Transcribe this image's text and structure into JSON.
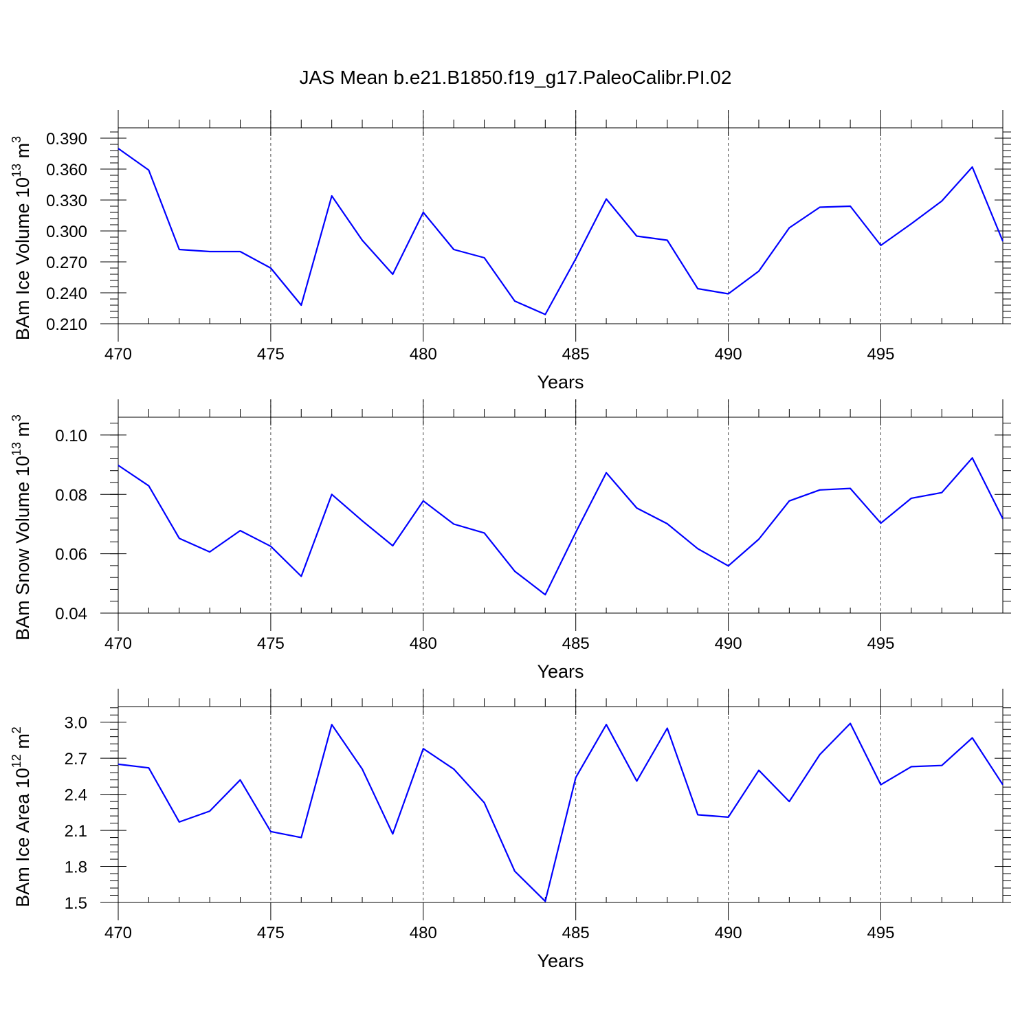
{
  "title": "JAS Mean b.e21.B1850.f19_g17.PaleoCalibr.PI.02",
  "chart_data": [
    {
      "type": "line",
      "xlabel": "Years",
      "ylabel_main": "BAm Ice Volume 10",
      "ylabel_exp": "13",
      "ylabel_unit": "m",
      "ylabel_unit_exp": "3",
      "xlim": [
        470,
        499
      ],
      "ylim": [
        0.21,
        0.4
      ],
      "xticks": [
        "470",
        "475",
        "480",
        "485",
        "490",
        "495"
      ],
      "yticks": [
        "0.210",
        "0.240",
        "0.270",
        "0.300",
        "0.330",
        "0.360",
        "0.390"
      ],
      "x": [
        470,
        471,
        472,
        473,
        474,
        475,
        476,
        477,
        478,
        479,
        480,
        481,
        482,
        483,
        484,
        485,
        486,
        487,
        488,
        489,
        490,
        491,
        492,
        493,
        494,
        495,
        496,
        497,
        498,
        499
      ],
      "series": [
        {
          "name": "BAm Ice Volume",
          "color": "#0000ff",
          "values": [
            0.38,
            0.359,
            0.282,
            0.28,
            0.28,
            0.264,
            0.228,
            0.334,
            0.291,
            0.258,
            0.318,
            0.282,
            0.274,
            0.232,
            0.219,
            0.273,
            0.331,
            0.295,
            0.291,
            0.244,
            0.239,
            0.261,
            0.303,
            0.323,
            0.324,
            0.286,
            0.307,
            0.329,
            0.362,
            0.29
          ]
        }
      ]
    },
    {
      "type": "line",
      "xlabel": "Years",
      "ylabel_main": "BAm Snow Volume 10",
      "ylabel_exp": "13",
      "ylabel_unit": "m",
      "ylabel_unit_exp": "3",
      "xlim": [
        470,
        499
      ],
      "ylim": [
        0.04,
        0.106
      ],
      "xticks": [
        "470",
        "475",
        "480",
        "485",
        "490",
        "495"
      ],
      "yticks": [
        "0.04",
        "0.06",
        "0.08",
        "0.10"
      ],
      "x": [
        470,
        471,
        472,
        473,
        474,
        475,
        476,
        477,
        478,
        479,
        480,
        481,
        482,
        483,
        484,
        485,
        486,
        487,
        488,
        489,
        490,
        491,
        492,
        493,
        494,
        495,
        496,
        497,
        498,
        499
      ],
      "series": [
        {
          "name": "BAm Snow Volume",
          "color": "#0000ff",
          "values": [
            0.0898,
            0.0829,
            0.0652,
            0.0606,
            0.0678,
            0.0625,
            0.0524,
            0.08,
            0.0711,
            0.0627,
            0.0778,
            0.07,
            0.067,
            0.0541,
            0.0462,
            0.0672,
            0.0873,
            0.0754,
            0.0701,
            0.0617,
            0.0559,
            0.0649,
            0.0778,
            0.0815,
            0.082,
            0.0703,
            0.0787,
            0.0806,
            0.0923,
            0.0718
          ]
        }
      ]
    },
    {
      "type": "line",
      "xlabel": "Years",
      "ylabel_main": "BAm Ice Area 10",
      "ylabel_exp": "12",
      "ylabel_unit": "m",
      "ylabel_unit_exp": "2",
      "xlim": [
        470,
        499
      ],
      "ylim": [
        1.5,
        3.13
      ],
      "xticks": [
        "470",
        "475",
        "480",
        "485",
        "490",
        "495"
      ],
      "yticks": [
        "1.5",
        "1.8",
        "2.1",
        "2.4",
        "2.7",
        "3.0"
      ],
      "x": [
        470,
        471,
        472,
        473,
        474,
        475,
        476,
        477,
        478,
        479,
        480,
        481,
        482,
        483,
        484,
        485,
        486,
        487,
        488,
        489,
        490,
        491,
        492,
        493,
        494,
        495,
        496,
        497,
        498,
        499
      ],
      "series": [
        {
          "name": "BAm Ice Area",
          "color": "#0000ff",
          "values": [
            2.65,
            2.62,
            2.17,
            2.26,
            2.52,
            2.09,
            2.04,
            2.98,
            2.61,
            2.07,
            2.78,
            2.61,
            2.33,
            1.76,
            1.51,
            2.54,
            2.98,
            2.51,
            2.95,
            2.23,
            2.21,
            2.6,
            2.34,
            2.73,
            2.99,
            2.48,
            2.63,
            2.64,
            2.87,
            2.48
          ]
        }
      ]
    }
  ]
}
